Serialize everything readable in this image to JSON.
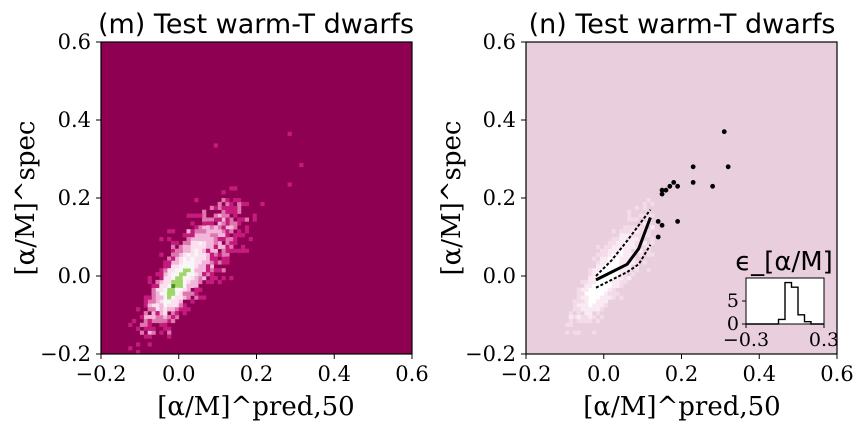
{
  "chart_data": [
    {
      "panel": "m",
      "type": "heatmap",
      "title": "(m) Test warm-T dwarfs",
      "xlabel": "[α/M]^pred,50",
      "ylabel": "[α/M]^spec",
      "xlim": [
        -0.2,
        0.6
      ],
      "ylim": [
        -0.2,
        0.6
      ],
      "xticks": [
        "−0.2",
        "0.0",
        "0.2",
        "0.4",
        "0.6"
      ],
      "yticks": [
        "−0.2",
        "0.0",
        "0.2",
        "0.4",
        "0.6"
      ],
      "background_color": "#8e0152",
      "colors": {
        "low": "#c51b7d",
        "mid": "#f7f7f7",
        "high": "#4d9221"
      },
      "grid": false,
      "density_model": {
        "center": [
          0.0,
          -0.01
        ],
        "correlation": 1.2,
        "core_spread": 0.035,
        "tail_to": [
          0.14,
          0.16
        ]
      },
      "sparse_points": [
        [
          0.09,
          0.33
        ],
        [
          0.29,
          0.36
        ],
        [
          0.31,
          0.28
        ],
        [
          0.28,
          0.23
        ],
        [
          0.15,
          0.18
        ],
        [
          0.14,
          0.15
        ]
      ]
    },
    {
      "panel": "n",
      "type": "scatter",
      "title": "(n) Test warm-T dwarfs",
      "xlabel": "[α/M]^pred,50",
      "ylabel": "[α/M]^spec",
      "xlim": [
        -0.2,
        0.6
      ],
      "ylim": [
        -0.2,
        0.6
      ],
      "xticks": [
        "−0.2",
        "0.0",
        "0.2",
        "0.4",
        "0.6"
      ],
      "yticks": [
        "−0.2",
        "0.0",
        "0.2",
        "0.4",
        "0.6"
      ],
      "background_color": "#e9cedd",
      "grid": false,
      "median_line": {
        "x": [
          -0.02,
          0.02,
          0.06,
          0.09,
          0.12
        ],
        "y": [
          -0.01,
          0.01,
          0.03,
          0.07,
          0.15
        ]
      },
      "upper_line": {
        "x": [
          -0.02,
          0.02,
          0.06,
          0.09,
          0.12
        ],
        "y": [
          0.0,
          0.04,
          0.09,
          0.13,
          0.17
        ]
      },
      "lower_line": {
        "x": [
          -0.02,
          0.02,
          0.06,
          0.09,
          0.12
        ],
        "y": [
          -0.03,
          -0.01,
          0.01,
          0.03,
          0.08
        ]
      },
      "outliers": [
        [
          0.31,
          0.37
        ],
        [
          0.23,
          0.28
        ],
        [
          0.32,
          0.28
        ],
        [
          0.23,
          0.24
        ],
        [
          0.28,
          0.23
        ],
        [
          0.18,
          0.24
        ],
        [
          0.17,
          0.23
        ],
        [
          0.19,
          0.23
        ],
        [
          0.16,
          0.22
        ],
        [
          0.15,
          0.22
        ],
        [
          0.15,
          0.21
        ],
        [
          0.19,
          0.14
        ],
        [
          0.14,
          0.14
        ],
        [
          0.15,
          0.13
        ],
        [
          0.14,
          0.1
        ]
      ],
      "inset": {
        "title": "ϵ_[α/M]",
        "type": "histogram",
        "xlim": [
          -0.3,
          0.3
        ],
        "ylim": [
          0,
          10
        ],
        "xticks": [
          "−0.3",
          "0.3"
        ],
        "yticks": [
          "0",
          "5"
        ],
        "bin_edges": [
          -0.3,
          -0.25,
          -0.2,
          -0.15,
          -0.1,
          -0.05,
          0.0,
          0.05,
          0.1,
          0.15,
          0.2,
          0.25,
          0.3
        ],
        "counts": [
          0,
          0,
          0,
          0,
          0,
          1,
          9,
          8,
          2,
          0.5,
          0,
          0
        ]
      }
    }
  ]
}
